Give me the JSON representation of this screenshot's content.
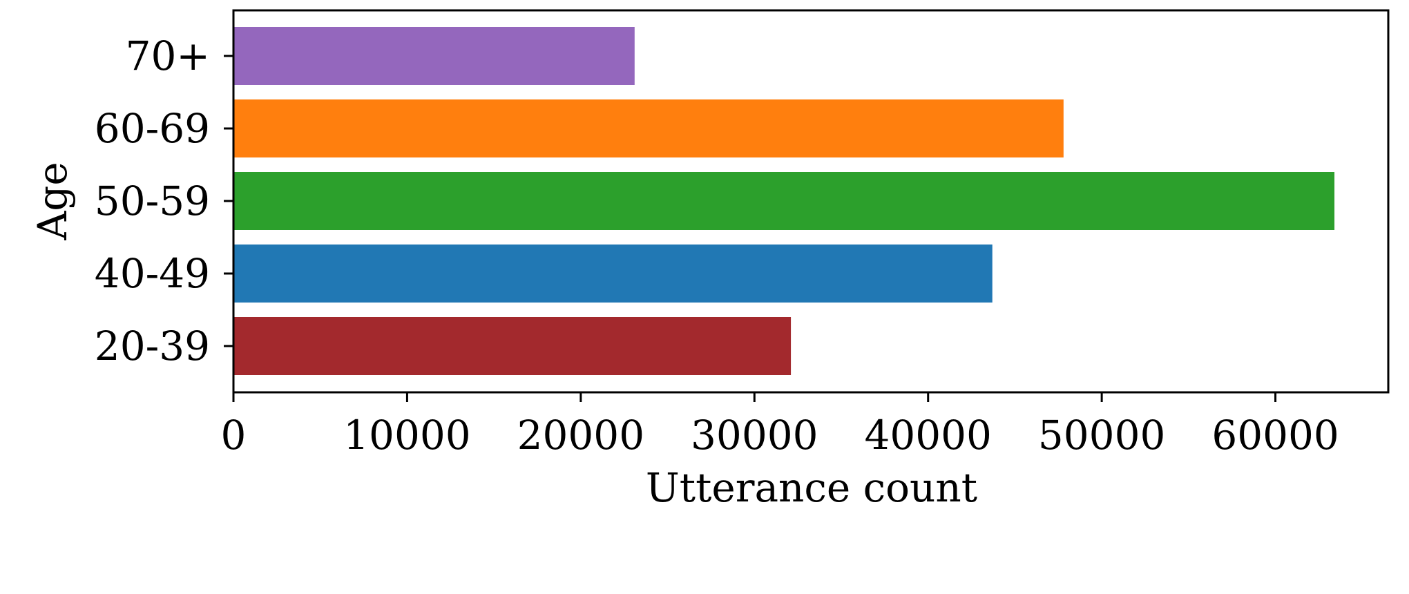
{
  "chart_data": {
    "type": "bar",
    "orientation": "horizontal",
    "title": "",
    "xlabel": "Utterance count",
    "ylabel": "Age",
    "categories": [
      "20-39",
      "40-49",
      "50-59",
      "60-69",
      "70+"
    ],
    "values": [
      32100,
      43700,
      63400,
      47800,
      23100
    ],
    "colors": [
      "#a3292d",
      "#2178b4",
      "#2ca02c",
      "#ff7f0e",
      "#9467bd"
    ],
    "xlim": [
      0,
      66500
    ],
    "xticks": [
      0,
      10000,
      20000,
      30000,
      40000,
      50000,
      60000
    ],
    "xtick_labels": [
      "0",
      "10000",
      "20000",
      "30000",
      "40000",
      "50000",
      "60000"
    ],
    "grid": false,
    "legend": "none"
  }
}
